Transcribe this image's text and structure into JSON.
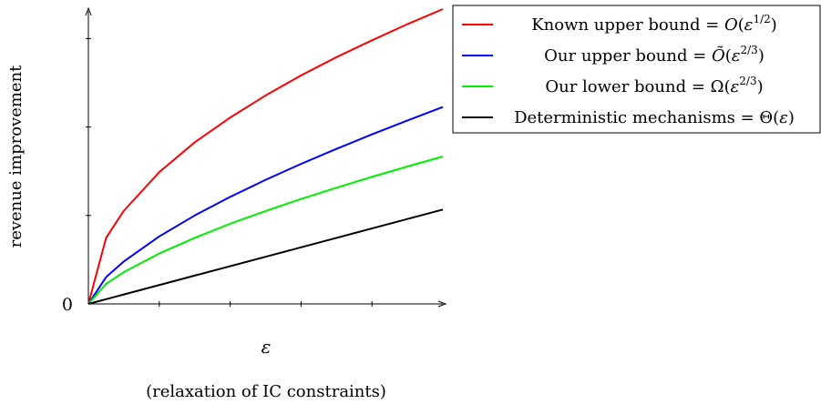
{
  "chart_data": {
    "type": "line",
    "title": "",
    "xlabel": "ε",
    "xlabel_note": "(relaxation of IC constraints)",
    "ylabel": "revenue improvement",
    "y_tick_labels": [
      "0"
    ],
    "xlim": [
      0,
      1
    ],
    "ylim": [
      0,
      1
    ],
    "grid": false,
    "legend_position": "top-right, outside plot",
    "x": [
      0,
      0.05,
      0.1,
      0.2,
      0.3,
      0.4,
      0.5,
      0.6,
      0.7,
      0.8,
      0.9,
      1.0
    ],
    "series": [
      {
        "name": "Known upper bound = O(ε^{1/2})",
        "color": "#ff0000",
        "values": [
          0,
          0.224,
          0.316,
          0.447,
          0.548,
          0.632,
          0.707,
          0.775,
          0.837,
          0.894,
          0.949,
          1.0
        ]
      },
      {
        "name": "Our upper bound = Õ(ε^{2/3})",
        "color": "#0000ff",
        "values": [
          0,
          0.091,
          0.144,
          0.229,
          0.3,
          0.363,
          0.421,
          0.475,
          0.526,
          0.575,
          0.622,
          0.668
        ]
      },
      {
        "name": "Our lower bound = Ω(ε^{2/3})",
        "color": "#00ee00",
        "values": [
          0,
          0.068,
          0.108,
          0.171,
          0.224,
          0.272,
          0.315,
          0.356,
          0.394,
          0.431,
          0.466,
          0.5
        ]
      },
      {
        "name": "Deterministic mechanisms = Θ(ε)",
        "color": "#000000",
        "values": [
          0,
          0.016,
          0.032,
          0.064,
          0.096,
          0.128,
          0.16,
          0.192,
          0.224,
          0.256,
          0.288,
          0.32
        ]
      }
    ]
  },
  "legend": {
    "entries": [
      {
        "prefix": "Known upper bound = ",
        "func": "O",
        "exp": "1/2",
        "suffix": ")"
      },
      {
        "prefix": "Our upper bound = ",
        "func": "Õ",
        "exp": "2/3",
        "suffix": ")"
      },
      {
        "prefix": "Our lower bound = ",
        "func": "Ω",
        "exp": "2/3",
        "suffix": ")"
      },
      {
        "prefix": "Deterministic mechanisms = ",
        "func": "Θ",
        "exp": "",
        "suffix": "ε)"
      }
    ]
  }
}
